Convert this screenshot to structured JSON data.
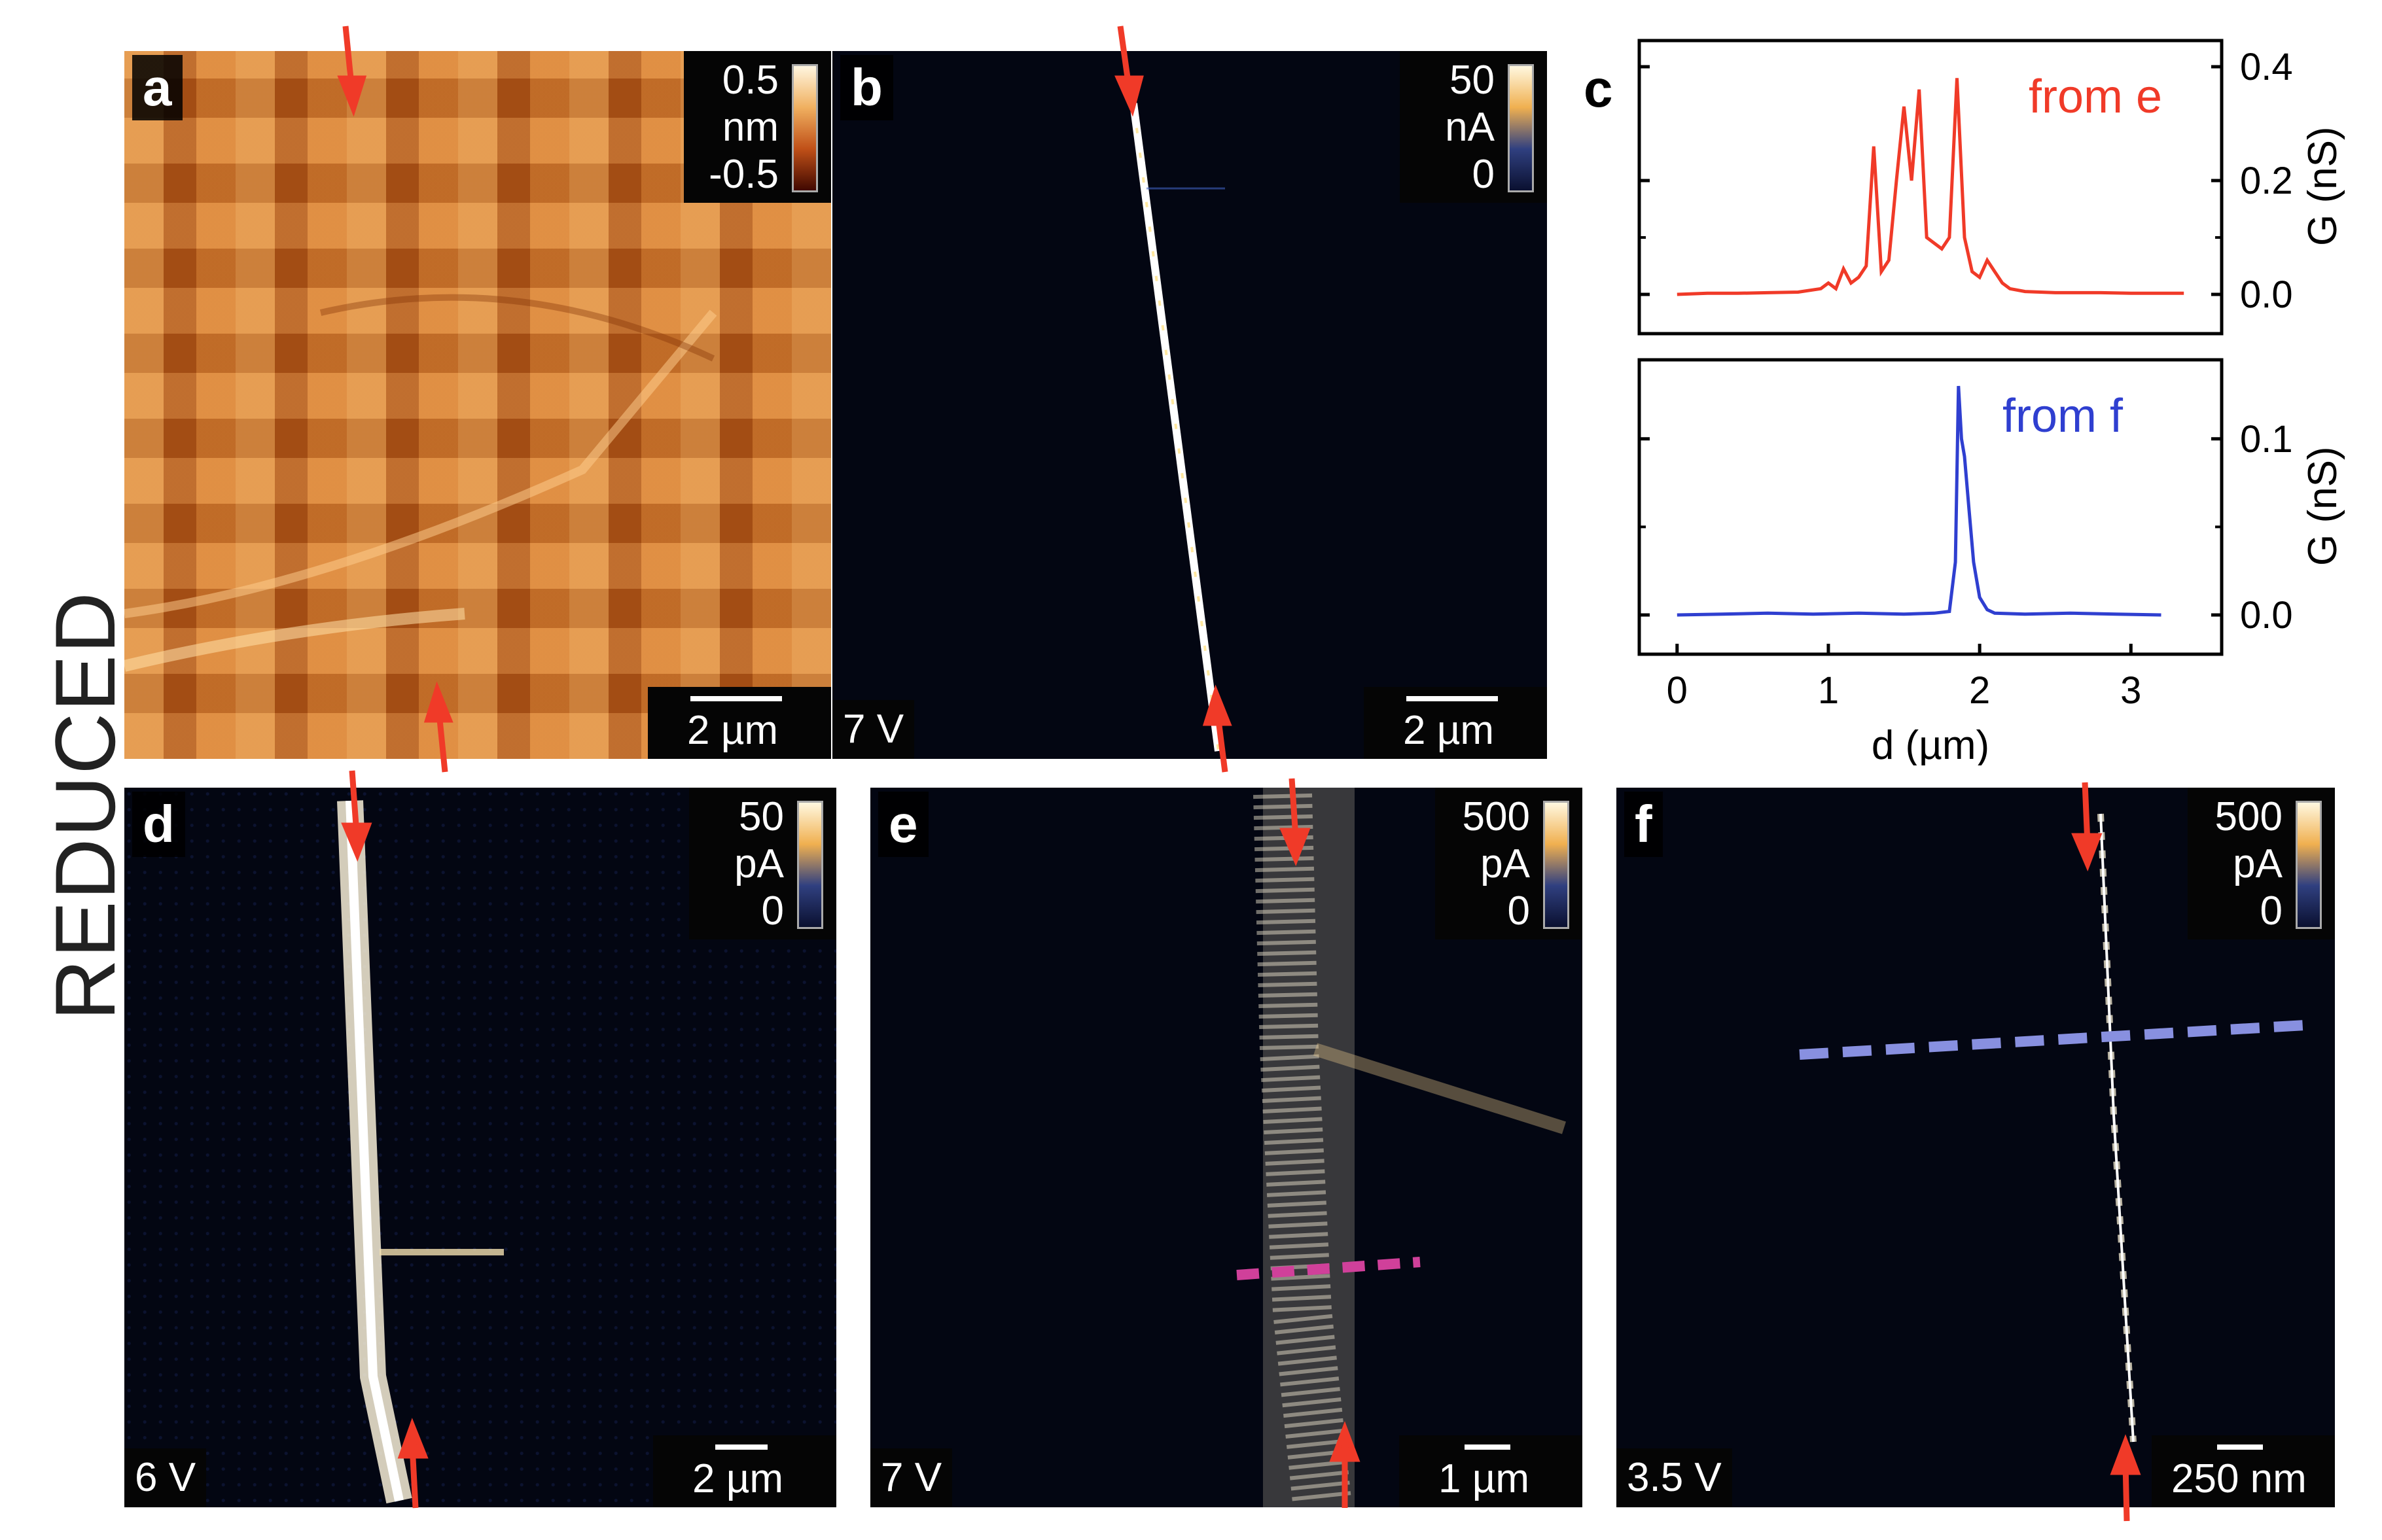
{
  "side_label": "REDUCED",
  "panels": {
    "a": {
      "label": "a",
      "cb_max": "0.5",
      "cb_unit": "nm",
      "cb_min": "-0.5",
      "scale": "2 µm"
    },
    "b": {
      "label": "b",
      "cb_max": "50",
      "cb_unit": "nA",
      "cb_min": "0",
      "scale": "2 µm",
      "voltage": "7 V"
    },
    "c": {
      "label": "c"
    },
    "d": {
      "label": "d",
      "cb_max": "50",
      "cb_unit": "pA",
      "cb_min": "0",
      "scale": "2 µm",
      "voltage": "6 V"
    },
    "e": {
      "label": "e",
      "cb_max": "500",
      "cb_unit": "pA",
      "cb_min": "0",
      "scale": "1 µm",
      "voltage": "7 V"
    },
    "f": {
      "label": "f",
      "cb_max": "500",
      "cb_unit": "pA",
      "cb_min": "0",
      "scale": "250 nm",
      "voltage": "3.5 V"
    }
  },
  "colors": {
    "afm": "#c86a22",
    "dark": "#030612",
    "red_line": "#f03a28",
    "blue_line": "#2f3fd0",
    "arrow": "#f03a28",
    "pink_dash": "#d0409a",
    "blue_dash": "#8890e0"
  },
  "chart_data": [
    {
      "type": "line",
      "annotation": "from e",
      "ylabel": "G (nS)",
      "ylim": [
        0,
        0.4
      ],
      "yticks": [
        "0.0",
        "0.2",
        "0.4"
      ],
      "xlim": [
        -0.25,
        3.6
      ],
      "series": [
        {
          "x": [
            0,
            0.2,
            0.4,
            0.6,
            0.8,
            0.95,
            1.0,
            1.05,
            1.1,
            1.15,
            1.2,
            1.25,
            1.3,
            1.35,
            1.4,
            1.45,
            1.5,
            1.55,
            1.6,
            1.65,
            1.7,
            1.75,
            1.8,
            1.85,
            1.9,
            1.95,
            2.0,
            2.05,
            2.1,
            2.15,
            2.2,
            2.3,
            2.5,
            2.8,
            3.0,
            3.2,
            3.35
          ],
          "y": [
            0,
            0.002,
            0.002,
            0.003,
            0.004,
            0.01,
            0.02,
            0.01,
            0.045,
            0.02,
            0.03,
            0.05,
            0.26,
            0.04,
            0.06,
            0.2,
            0.33,
            0.2,
            0.36,
            0.1,
            0.09,
            0.08,
            0.1,
            0.38,
            0.1,
            0.04,
            0.03,
            0.06,
            0.04,
            0.02,
            0.01,
            0.005,
            0.003,
            0.003,
            0.002,
            0.002,
            0.002
          ]
        }
      ]
    },
    {
      "type": "line",
      "annotation": "from f",
      "ylabel": "G (nS)",
      "xlabel": "d (µm)",
      "ylim": [
        0,
        0.13
      ],
      "yticks": [
        "0.0",
        "0.1"
      ],
      "xlim": [
        -0.25,
        3.6
      ],
      "xticks": [
        "0",
        "1",
        "2",
        "3"
      ],
      "series": [
        {
          "x": [
            0,
            0.3,
            0.6,
            0.9,
            1.2,
            1.5,
            1.7,
            1.8,
            1.84,
            1.86,
            1.88,
            1.9,
            1.93,
            1.96,
            2.0,
            2.05,
            2.1,
            2.3,
            2.6,
            2.9,
            3.2
          ],
          "y": [
            0,
            0.0005,
            0.001,
            0.0005,
            0.001,
            0.0005,
            0.001,
            0.002,
            0.03,
            0.13,
            0.1,
            0.09,
            0.06,
            0.03,
            0.01,
            0.003,
            0.001,
            0.0005,
            0.001,
            0.0005,
            0.0
          ]
        }
      ]
    }
  ]
}
